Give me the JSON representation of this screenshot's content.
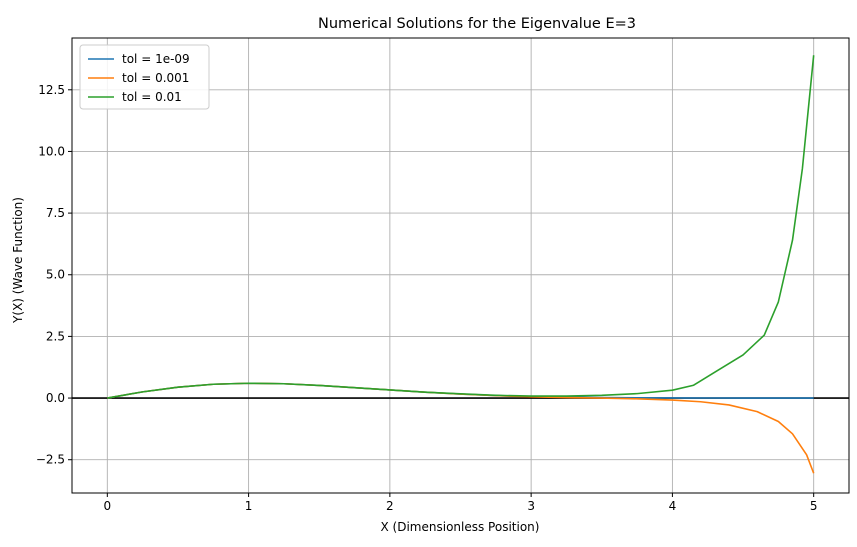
{
  "chart_data": {
    "type": "line",
    "title": "Numerical Solutions for the Eigenvalue E=3",
    "xlabel": "X (Dimensionless Position)",
    "ylabel": "Y(X) (Wave Function)",
    "xlim": [
      -0.25,
      5.25
    ],
    "ylim": [
      -3.85,
      14.6
    ],
    "xticks": [
      0,
      1,
      2,
      3,
      4,
      5
    ],
    "xtick_labels": [
      "0",
      "1",
      "2",
      "3",
      "4",
      "5"
    ],
    "yticks": [
      -2.5,
      0.0,
      2.5,
      5.0,
      7.5,
      10.0,
      12.5
    ],
    "ytick_labels": [
      "−2.5",
      "0.0",
      "2.5",
      "5.0",
      "7.5",
      "10.0",
      "12.5"
    ],
    "grid": true,
    "legend_position": "upper-left",
    "hline": {
      "y": 0,
      "color": "#000000"
    },
    "series": [
      {
        "name": "tol = 1e-09",
        "color": "#1f77b4",
        "x": [
          0,
          0.25,
          0.5,
          0.75,
          1.0,
          1.25,
          1.5,
          1.75,
          2.0,
          2.25,
          2.5,
          2.75,
          3.0,
          3.25,
          3.5,
          3.75,
          4.0,
          4.25,
          4.5,
          4.75,
          5.0
        ],
        "y": [
          0,
          0.25,
          0.44,
          0.56,
          0.6,
          0.58,
          0.51,
          0.42,
          0.33,
          0.24,
          0.16,
          0.1,
          0.06,
          0.035,
          0.02,
          0.01,
          0.005,
          0.002,
          0.001,
          0.0005,
          0
        ]
      },
      {
        "name": "tol = 0.001",
        "color": "#ff7f0e",
        "x": [
          0,
          0.25,
          0.5,
          0.75,
          1.0,
          1.25,
          1.5,
          1.75,
          2.0,
          2.25,
          2.5,
          2.75,
          3.0,
          3.25,
          3.5,
          3.75,
          4.0,
          4.2,
          4.4,
          4.6,
          4.75,
          4.85,
          4.95,
          5.0
        ],
        "y": [
          0,
          0.25,
          0.44,
          0.56,
          0.6,
          0.58,
          0.51,
          0.42,
          0.33,
          0.24,
          0.16,
          0.1,
          0.05,
          0.02,
          0.0,
          -0.03,
          -0.08,
          -0.15,
          -0.28,
          -0.55,
          -0.95,
          -1.45,
          -2.3,
          -3.05
        ]
      },
      {
        "name": "tol = 0.01",
        "color": "#2ca02c",
        "x": [
          0,
          0.25,
          0.5,
          0.75,
          1.0,
          1.25,
          1.5,
          1.75,
          2.0,
          2.25,
          2.5,
          2.75,
          3.0,
          3.25,
          3.5,
          3.75,
          4.0,
          4.15,
          4.3,
          4.5,
          4.65,
          4.75,
          4.85,
          4.92,
          5.0
        ],
        "y": [
          0,
          0.25,
          0.44,
          0.56,
          0.6,
          0.58,
          0.51,
          0.42,
          0.33,
          0.24,
          0.17,
          0.11,
          0.08,
          0.08,
          0.11,
          0.18,
          0.32,
          0.52,
          1.05,
          1.75,
          2.55,
          3.9,
          6.4,
          9.3,
          13.9
        ]
      }
    ]
  }
}
